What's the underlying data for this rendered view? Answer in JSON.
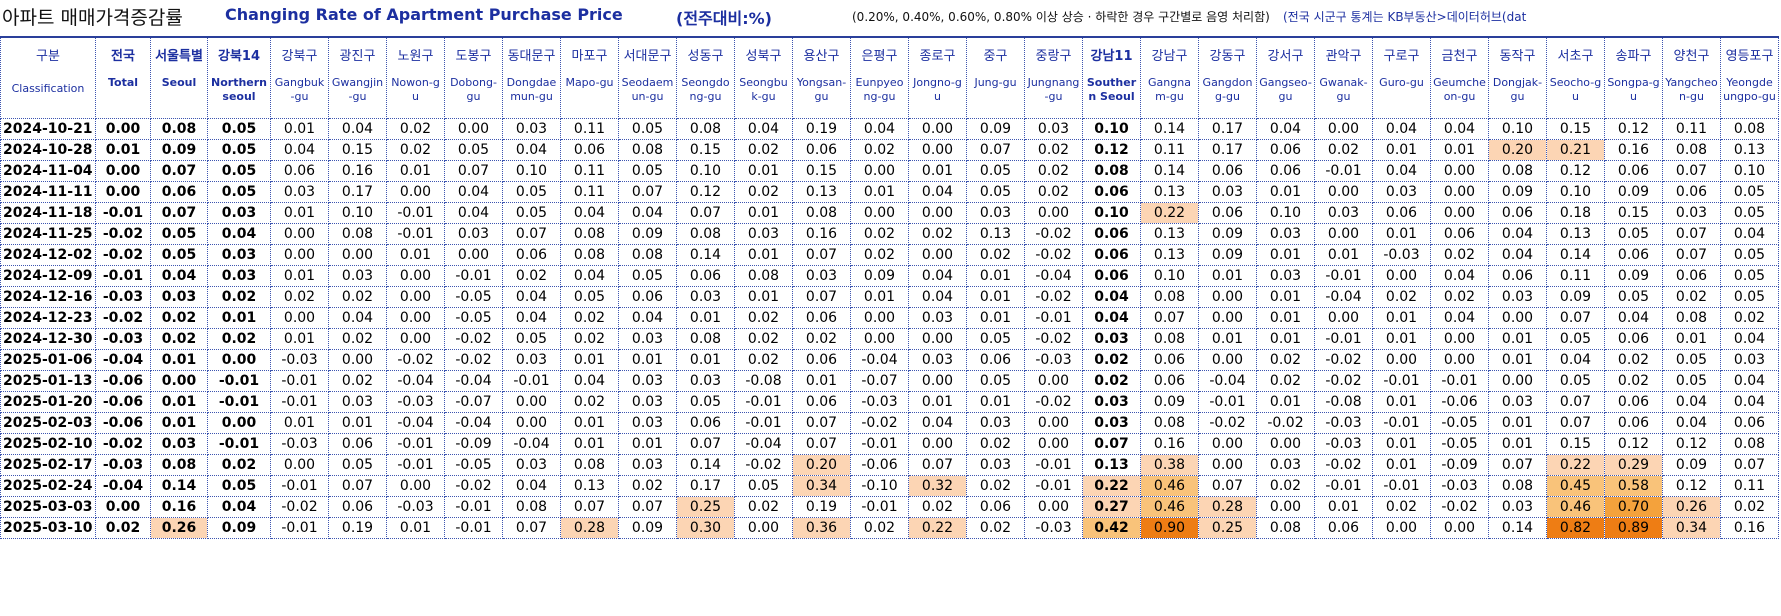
{
  "header": {
    "title_ko": "아파트 매매가격증감률",
    "title_en": "Changing Rate of Apartment Purchase Price",
    "unit": "(전주대비:%)",
    "note": "(0.20%, 0.40%, 0.60%, 0.80% 이상 상승 · 하락한 경우 구간별로 음영 처리함)",
    "source": "(전국 시군구 통계는 KB부동산>데이터허브(dat"
  },
  "shading": {
    "thresholds": [
      0.2,
      0.4,
      0.6,
      0.8
    ],
    "colors": [
      "#fcd5b4",
      "#f9c37a",
      "#f4a23c",
      "#ee7d14"
    ]
  },
  "table": {
    "corner": {
      "ko": "구분",
      "en": "Classification"
    },
    "columns": [
      {
        "ko": "전국",
        "en": "Total",
        "aggregate": true
      },
      {
        "ko": "서울특별",
        "en": "Seoul",
        "aggregate": true
      },
      {
        "ko": "강북14",
        "en": "Northern seoul",
        "aggregate": true
      },
      {
        "ko": "강북구",
        "en": "Gangbuk-gu",
        "aggregate": false
      },
      {
        "ko": "광진구",
        "en": "Gwangjin-gu",
        "aggregate": false
      },
      {
        "ko": "노원구",
        "en": "Nowon-gu",
        "aggregate": false
      },
      {
        "ko": "도봉구",
        "en": "Dobong-gu",
        "aggregate": false
      },
      {
        "ko": "동대문구",
        "en": "Dongdaemun-gu",
        "aggregate": false
      },
      {
        "ko": "마포구",
        "en": "Mapo-gu",
        "aggregate": false
      },
      {
        "ko": "서대문구",
        "en": "Seodaemun-gu",
        "aggregate": false
      },
      {
        "ko": "성동구",
        "en": "Seongdong-gu",
        "aggregate": false
      },
      {
        "ko": "성북구",
        "en": "Seongbuk-gu",
        "aggregate": false
      },
      {
        "ko": "용산구",
        "en": "Yongsan-gu",
        "aggregate": false
      },
      {
        "ko": "은평구",
        "en": "Eunpyeong-gu",
        "aggregate": false
      },
      {
        "ko": "종로구",
        "en": "Jongno-gu",
        "aggregate": false
      },
      {
        "ko": "중구",
        "en": "Jung-gu",
        "aggregate": false
      },
      {
        "ko": "중랑구",
        "en": "Jungnang-gu",
        "aggregate": false
      },
      {
        "ko": "강남11",
        "en": "Southern Seoul",
        "aggregate": true
      },
      {
        "ko": "강남구",
        "en": "Gangnam-gu",
        "aggregate": false
      },
      {
        "ko": "강동구",
        "en": "Gangdong-gu",
        "aggregate": false
      },
      {
        "ko": "강서구",
        "en": "Gangseo-gu",
        "aggregate": false
      },
      {
        "ko": "관악구",
        "en": "Gwanak-gu",
        "aggregate": false
      },
      {
        "ko": "구로구",
        "en": "Guro-gu",
        "aggregate": false
      },
      {
        "ko": "금천구",
        "en": "Geumcheon-gu",
        "aggregate": false
      },
      {
        "ko": "동작구",
        "en": "Dongjak-gu",
        "aggregate": false
      },
      {
        "ko": "서초구",
        "en": "Seocho-gu",
        "aggregate": false
      },
      {
        "ko": "송파구",
        "en": "Songpa-gu",
        "aggregate": false
      },
      {
        "ko": "양천구",
        "en": "Yangcheon-gu",
        "aggregate": false
      },
      {
        "ko": "영등포구",
        "en": "Yeongdeungpo-gu",
        "aggregate": false
      }
    ],
    "rows": [
      {
        "date": "2024-10-21",
        "values": [
          "0.00",
          "0.08",
          "0.05",
          "0.01",
          "0.04",
          "0.02",
          "0.00",
          "0.03",
          "0.11",
          "0.05",
          "0.08",
          "0.04",
          "0.19",
          "0.04",
          "0.00",
          "0.09",
          "0.03",
          "0.10",
          "0.14",
          "0.17",
          "0.04",
          "0.00",
          "0.04",
          "0.04",
          "0.10",
          "0.15",
          "0.12",
          "0.11",
          "0.08"
        ]
      },
      {
        "date": "2024-10-28",
        "values": [
          "0.01",
          "0.09",
          "0.05",
          "0.04",
          "0.15",
          "0.02",
          "0.05",
          "0.04",
          "0.06",
          "0.08",
          "0.15",
          "0.02",
          "0.06",
          "0.02",
          "0.00",
          "0.07",
          "0.02",
          "0.12",
          "0.11",
          "0.17",
          "0.06",
          "0.02",
          "0.01",
          "0.01",
          "0.20",
          "0.21",
          "0.16",
          "0.08",
          "0.13"
        ]
      },
      {
        "date": "2024-11-04",
        "values": [
          "0.00",
          "0.07",
          "0.05",
          "0.06",
          "0.16",
          "0.01",
          "0.07",
          "0.10",
          "0.11",
          "0.05",
          "0.10",
          "0.01",
          "0.15",
          "0.00",
          "0.01",
          "0.05",
          "0.02",
          "0.08",
          "0.14",
          "0.06",
          "0.06",
          "-0.01",
          "0.04",
          "0.00",
          "0.08",
          "0.12",
          "0.06",
          "0.07",
          "0.10"
        ]
      },
      {
        "date": "2024-11-11",
        "values": [
          "0.00",
          "0.06",
          "0.05",
          "0.03",
          "0.17",
          "0.00",
          "0.04",
          "0.05",
          "0.11",
          "0.07",
          "0.12",
          "0.02",
          "0.13",
          "0.01",
          "0.04",
          "0.05",
          "0.02",
          "0.06",
          "0.13",
          "0.03",
          "0.01",
          "0.00",
          "0.03",
          "0.00",
          "0.09",
          "0.10",
          "0.09",
          "0.06",
          "0.05"
        ]
      },
      {
        "date": "2024-11-18",
        "values": [
          "-0.01",
          "0.07",
          "0.03",
          "0.01",
          "0.10",
          "-0.01",
          "0.04",
          "0.05",
          "0.04",
          "0.04",
          "0.07",
          "0.01",
          "0.08",
          "0.00",
          "0.00",
          "0.03",
          "0.00",
          "0.10",
          "0.22",
          "0.06",
          "0.10",
          "0.03",
          "0.06",
          "0.00",
          "0.06",
          "0.18",
          "0.15",
          "0.03",
          "0.05"
        ]
      },
      {
        "date": "2024-11-25",
        "values": [
          "-0.02",
          "0.05",
          "0.04",
          "0.00",
          "0.08",
          "-0.01",
          "0.03",
          "0.07",
          "0.08",
          "0.09",
          "0.08",
          "0.03",
          "0.16",
          "0.02",
          "0.02",
          "0.13",
          "-0.02",
          "0.06",
          "0.13",
          "0.09",
          "0.03",
          "0.00",
          "0.01",
          "0.06",
          "0.04",
          "0.13",
          "0.05",
          "0.07",
          "0.04"
        ]
      },
      {
        "date": "2024-12-02",
        "values": [
          "-0.02",
          "0.05",
          "0.03",
          "0.00",
          "0.00",
          "0.01",
          "0.00",
          "0.06",
          "0.08",
          "0.08",
          "0.14",
          "0.01",
          "0.07",
          "0.02",
          "0.00",
          "0.02",
          "-0.02",
          "0.06",
          "0.13",
          "0.09",
          "0.01",
          "0.01",
          "-0.03",
          "0.02",
          "0.04",
          "0.14",
          "0.06",
          "0.07",
          "0.05"
        ]
      },
      {
        "date": "2024-12-09",
        "values": [
          "-0.01",
          "0.04",
          "0.03",
          "0.01",
          "0.03",
          "0.00",
          "-0.01",
          "0.02",
          "0.04",
          "0.05",
          "0.06",
          "0.08",
          "0.03",
          "0.09",
          "0.04",
          "0.01",
          "-0.04",
          "0.06",
          "0.10",
          "0.01",
          "0.03",
          "-0.01",
          "0.00",
          "0.04",
          "0.06",
          "0.11",
          "0.09",
          "0.06",
          "0.05"
        ]
      },
      {
        "date": "2024-12-16",
        "values": [
          "-0.03",
          "0.03",
          "0.02",
          "0.02",
          "0.02",
          "0.00",
          "-0.05",
          "0.04",
          "0.05",
          "0.06",
          "0.03",
          "0.01",
          "0.07",
          "0.01",
          "0.04",
          "0.01",
          "-0.02",
          "0.04",
          "0.08",
          "0.00",
          "0.01",
          "-0.04",
          "0.02",
          "0.02",
          "0.03",
          "0.09",
          "0.05",
          "0.02",
          "0.05"
        ]
      },
      {
        "date": "2024-12-23",
        "values": [
          "-0.02",
          "0.02",
          "0.01",
          "0.00",
          "0.04",
          "0.00",
          "-0.05",
          "0.04",
          "0.02",
          "0.04",
          "0.01",
          "0.02",
          "0.06",
          "0.00",
          "0.03",
          "0.01",
          "-0.01",
          "0.04",
          "0.07",
          "0.00",
          "0.01",
          "0.00",
          "0.01",
          "0.04",
          "0.00",
          "0.07",
          "0.04",
          "0.08",
          "0.02"
        ]
      },
      {
        "date": "2024-12-30",
        "values": [
          "-0.03",
          "0.02",
          "0.02",
          "0.01",
          "0.02",
          "0.00",
          "-0.02",
          "0.05",
          "0.02",
          "0.03",
          "0.08",
          "0.02",
          "0.02",
          "0.00",
          "0.00",
          "0.05",
          "-0.02",
          "0.03",
          "0.08",
          "0.01",
          "0.01",
          "-0.01",
          "0.01",
          "0.00",
          "0.01",
          "0.05",
          "0.06",
          "0.01",
          "0.04"
        ]
      },
      {
        "date": "2025-01-06",
        "values": [
          "-0.04",
          "0.01",
          "0.00",
          "-0.03",
          "0.00",
          "-0.02",
          "-0.02",
          "0.03",
          "0.01",
          "0.01",
          "0.01",
          "0.02",
          "0.06",
          "-0.04",
          "0.03",
          "0.06",
          "-0.03",
          "0.02",
          "0.06",
          "0.00",
          "0.02",
          "-0.02",
          "0.00",
          "0.00",
          "0.01",
          "0.04",
          "0.02",
          "0.05",
          "0.03"
        ]
      },
      {
        "date": "2025-01-13",
        "values": [
          "-0.06",
          "0.00",
          "-0.01",
          "-0.01",
          "0.02",
          "-0.04",
          "-0.04",
          "-0.01",
          "0.04",
          "0.03",
          "0.03",
          "-0.08",
          "0.01",
          "-0.07",
          "0.00",
          "0.05",
          "0.00",
          "0.02",
          "0.06",
          "-0.04",
          "0.02",
          "-0.02",
          "-0.01",
          "-0.01",
          "0.00",
          "0.05",
          "0.02",
          "0.05",
          "0.04"
        ]
      },
      {
        "date": "2025-01-20",
        "values": [
          "-0.06",
          "0.01",
          "-0.01",
          "-0.01",
          "0.03",
          "-0.03",
          "-0.07",
          "0.00",
          "0.02",
          "0.03",
          "0.05",
          "-0.01",
          "0.06",
          "-0.03",
          "0.01",
          "0.01",
          "-0.02",
          "0.03",
          "0.09",
          "-0.01",
          "0.01",
          "-0.08",
          "0.01",
          "-0.06",
          "0.03",
          "0.07",
          "0.06",
          "0.04",
          "0.04"
        ]
      },
      {
        "date": "2025-02-03",
        "values": [
          "-0.06",
          "0.01",
          "0.00",
          "0.01",
          "0.01",
          "-0.04",
          "-0.04",
          "0.00",
          "0.01",
          "0.03",
          "0.06",
          "-0.01",
          "0.07",
          "-0.02",
          "0.04",
          "0.03",
          "0.00",
          "0.03",
          "0.08",
          "-0.02",
          "-0.02",
          "-0.03",
          "-0.01",
          "-0.05",
          "0.01",
          "0.07",
          "0.06",
          "0.04",
          "0.06"
        ]
      },
      {
        "date": "2025-02-10",
        "values": [
          "-0.02",
          "0.03",
          "-0.01",
          "-0.03",
          "0.06",
          "-0.01",
          "-0.09",
          "-0.04",
          "0.01",
          "0.01",
          "0.07",
          "-0.04",
          "0.07",
          "-0.01",
          "0.00",
          "0.02",
          "0.00",
          "0.07",
          "0.16",
          "0.00",
          "0.00",
          "-0.03",
          "0.01",
          "-0.05",
          "0.01",
          "0.15",
          "0.12",
          "0.12",
          "0.08"
        ]
      },
      {
        "date": "2025-02-17",
        "values": [
          "-0.03",
          "0.08",
          "0.02",
          "0.00",
          "0.05",
          "-0.01",
          "-0.05",
          "0.03",
          "0.08",
          "0.03",
          "0.14",
          "-0.02",
          "0.20",
          "-0.06",
          "0.07",
          "0.03",
          "-0.01",
          "0.13",
          "0.38",
          "0.00",
          "0.03",
          "-0.02",
          "0.01",
          "-0.09",
          "0.07",
          "0.22",
          "0.29",
          "0.09",
          "0.07"
        ]
      },
      {
        "date": "2025-02-24",
        "values": [
          "-0.04",
          "0.14",
          "0.05",
          "-0.01",
          "0.07",
          "0.00",
          "-0.02",
          "0.04",
          "0.13",
          "0.02",
          "0.17",
          "0.05",
          "0.34",
          "-0.10",
          "0.32",
          "0.02",
          "-0.01",
          "0.22",
          "0.46",
          "0.07",
          "0.02",
          "-0.01",
          "-0.01",
          "-0.03",
          "0.08",
          "0.45",
          "0.58",
          "0.12",
          "0.11"
        ]
      },
      {
        "date": "2025-03-03",
        "values": [
          "0.00",
          "0.16",
          "0.04",
          "-0.02",
          "0.06",
          "-0.03",
          "-0.01",
          "0.08",
          "0.07",
          "0.07",
          "0.25",
          "0.02",
          "0.19",
          "-0.01",
          "0.02",
          "0.06",
          "0.00",
          "0.27",
          "0.46",
          "0.28",
          "0.00",
          "0.01",
          "0.02",
          "-0.02",
          "0.03",
          "0.46",
          "0.70",
          "0.26",
          "0.02"
        ]
      },
      {
        "date": "2025-03-10",
        "values": [
          "0.02",
          "0.26",
          "0.09",
          "-0.01",
          "0.19",
          "0.01",
          "-0.01",
          "0.07",
          "0.28",
          "0.09",
          "0.30",
          "0.00",
          "0.36",
          "0.02",
          "0.22",
          "0.02",
          "-0.03",
          "0.42",
          "0.90",
          "0.25",
          "0.08",
          "0.06",
          "0.00",
          "0.00",
          "0.14",
          "0.82",
          "0.89",
          "0.34",
          "0.16"
        ]
      }
    ]
  }
}
